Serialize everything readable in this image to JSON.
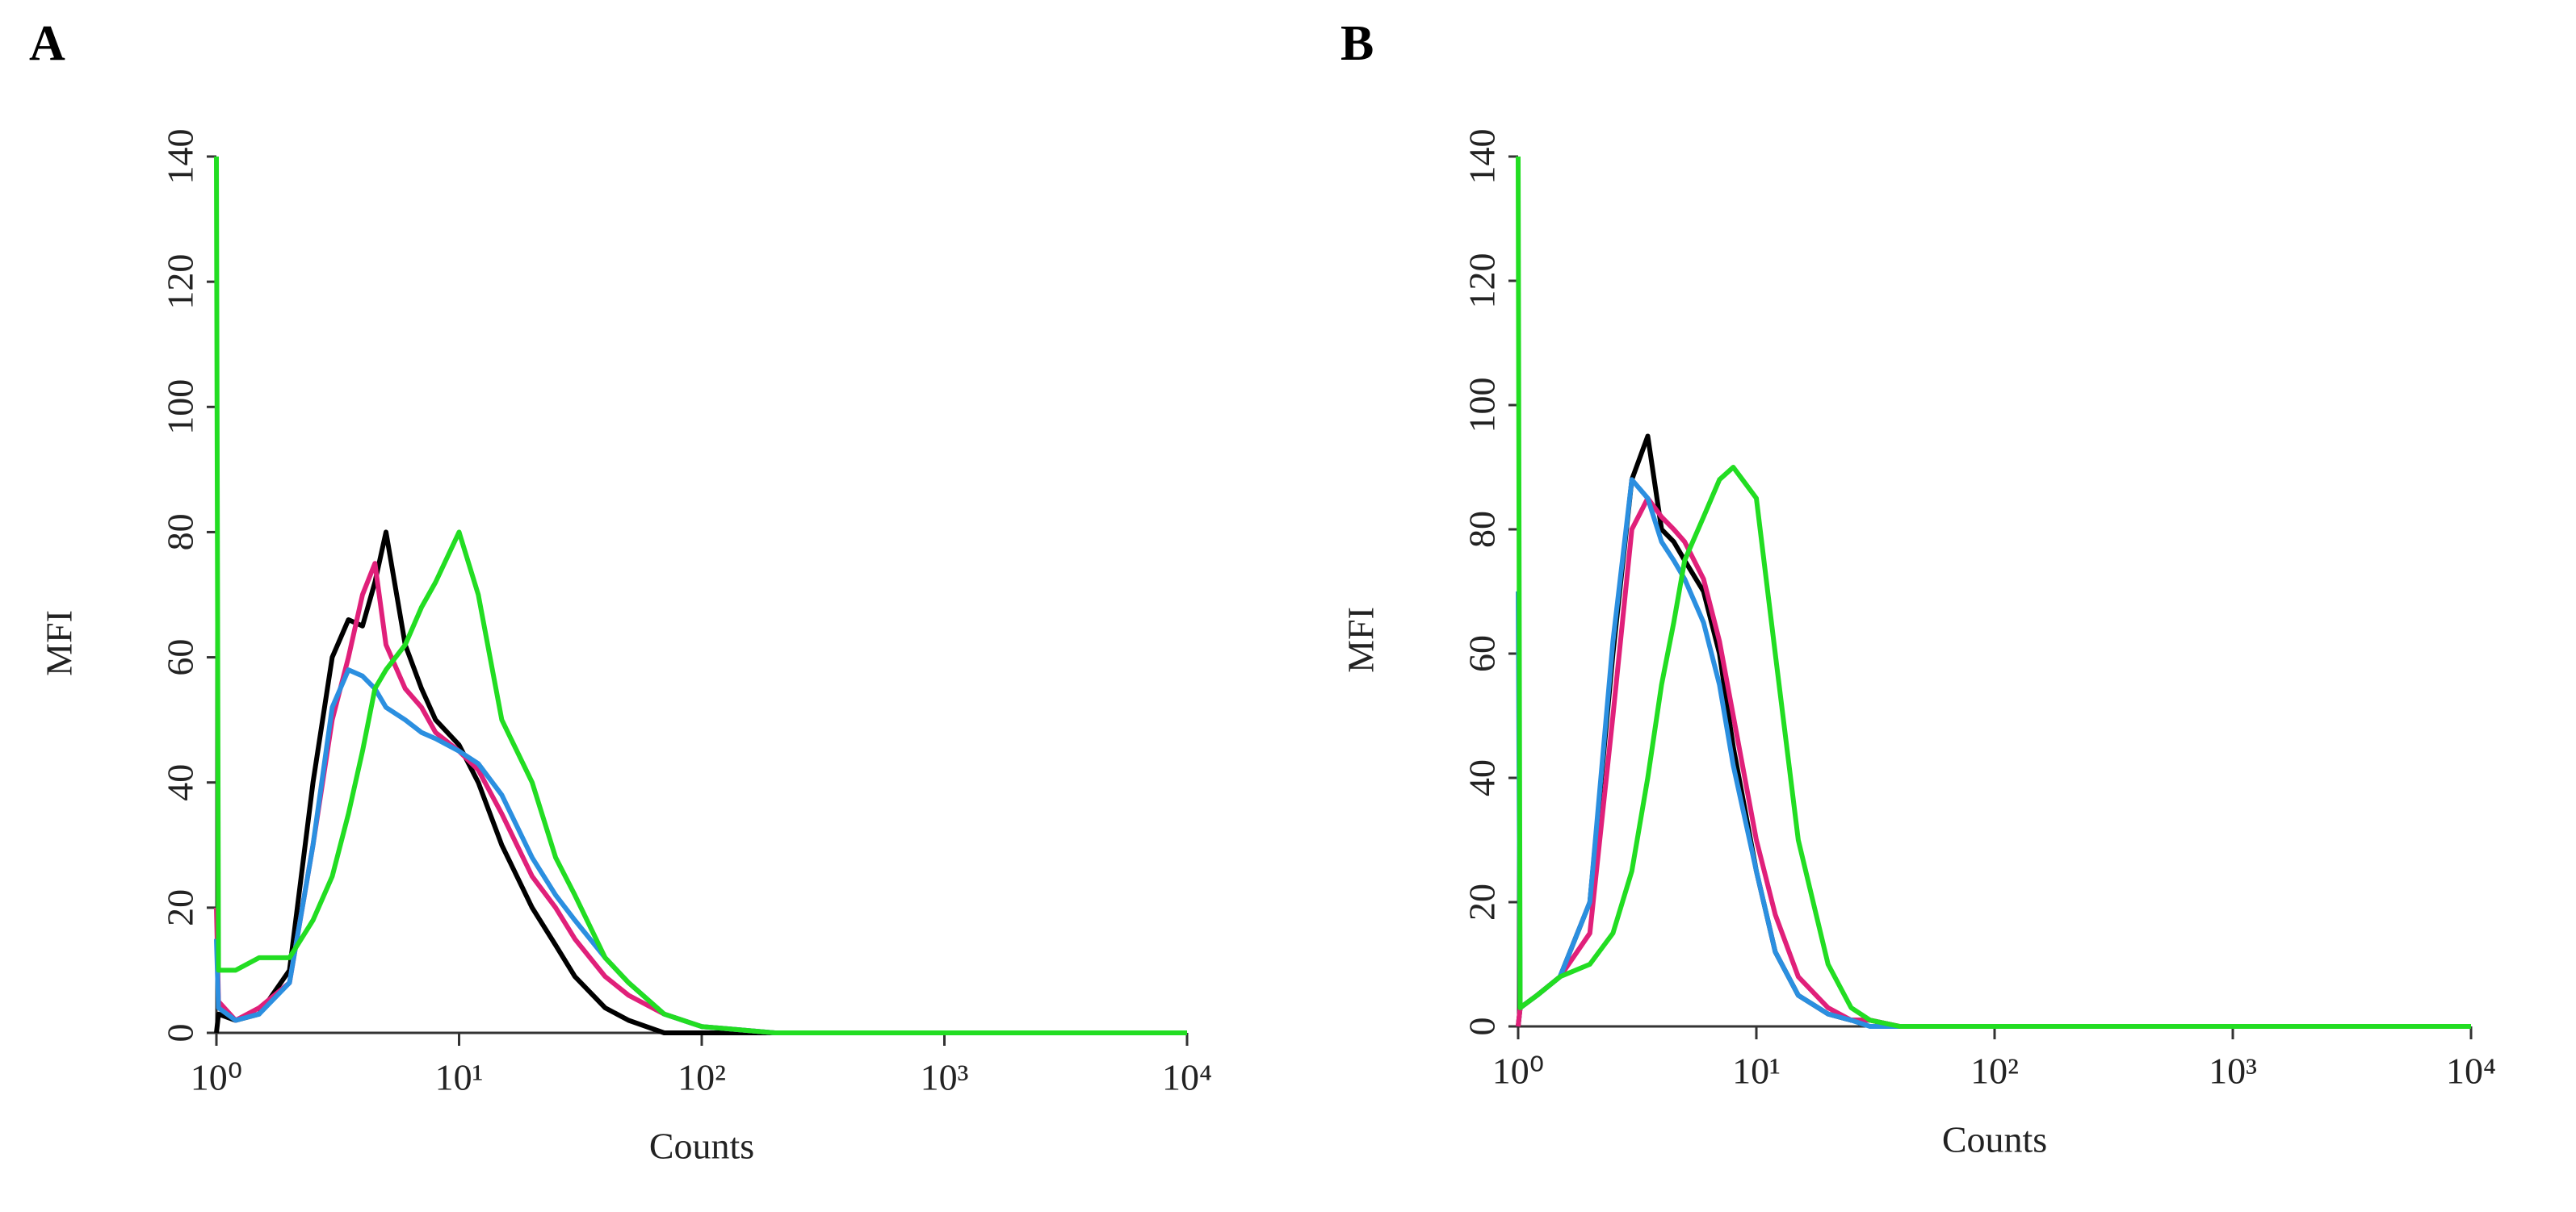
{
  "chart_data": [
    {
      "type": "line",
      "label": "A",
      "xlabel": "Counts",
      "ylabel": "MFI",
      "xscale": "log",
      "xlim": [
        1,
        10000
      ],
      "xticks": [
        {
          "value": 1,
          "label": "10⁰"
        },
        {
          "value": 10,
          "label": "10¹"
        },
        {
          "value": 100,
          "label": "10²"
        },
        {
          "value": 1000,
          "label": "10³"
        },
        {
          "value": 10000,
          "label": "10⁴"
        }
      ],
      "ylim": [
        0,
        140
      ],
      "yticks": [
        0,
        20,
        40,
        60,
        80,
        100,
        120,
        140
      ],
      "x": [
        1,
        1.02,
        1.2,
        1.5,
        2,
        2.5,
        3,
        3.5,
        4,
        4.5,
        5,
        6,
        7,
        8,
        10,
        12,
        15,
        20,
        25,
        30,
        40,
        50,
        70,
        100,
        200,
        1000,
        10000
      ],
      "series": [
        {
          "color": "#000000",
          "values": [
            0,
            3,
            2,
            3,
            10,
            40,
            60,
            66,
            65,
            72,
            80,
            62,
            55,
            50,
            46,
            40,
            30,
            20,
            14,
            9,
            4,
            2,
            0,
            0,
            0,
            0,
            0
          ]
        },
        {
          "color": "#e0207a",
          "values": [
            20,
            5,
            2,
            4,
            8,
            30,
            50,
            60,
            70,
            75,
            62,
            55,
            52,
            48,
            45,
            42,
            35,
            25,
            20,
            15,
            9,
            6,
            3,
            1,
            0,
            0,
            0
          ]
        },
        {
          "color": "#2b8fe0",
          "values": [
            15,
            4,
            2,
            3,
            8,
            30,
            52,
            58,
            57,
            55,
            52,
            50,
            48,
            47,
            45,
            43,
            38,
            28,
            22,
            18,
            12,
            8,
            3,
            1,
            0,
            0,
            0
          ]
        },
        {
          "color": "#22dd22",
          "values": [
            140,
            10,
            10,
            12,
            12,
            18,
            25,
            35,
            45,
            55,
            58,
            62,
            68,
            72,
            80,
            70,
            50,
            40,
            28,
            22,
            12,
            8,
            3,
            1,
            0,
            0,
            0
          ]
        }
      ]
    },
    {
      "type": "line",
      "label": "B",
      "xlabel": "Counts",
      "ylabel": "MFI",
      "xscale": "log",
      "xlim": [
        1,
        10000
      ],
      "xticks": [
        {
          "value": 1,
          "label": "10⁰"
        },
        {
          "value": 10,
          "label": "10¹"
        },
        {
          "value": 100,
          "label": "10²"
        },
        {
          "value": 1000,
          "label": "10³"
        },
        {
          "value": 10000,
          "label": "10⁴"
        }
      ],
      "ylim": [
        0,
        140
      ],
      "yticks": [
        0,
        20,
        40,
        60,
        80,
        100,
        120,
        140
      ],
      "x": [
        1,
        1.02,
        1.2,
        1.5,
        2,
        2.5,
        3,
        3.5,
        4,
        4.5,
        5,
        6,
        7,
        8,
        10,
        12,
        15,
        20,
        25,
        30,
        40,
        50,
        70,
        100,
        200,
        1000,
        10000
      ],
      "series": [
        {
          "color": "#000000",
          "values": [
            0,
            3,
            5,
            8,
            20,
            60,
            88,
            95,
            80,
            78,
            75,
            70,
            60,
            45,
            25,
            12,
            5,
            2,
            1,
            1,
            0,
            0,
            0,
            0,
            0,
            0,
            0
          ]
        },
        {
          "color": "#e0207a",
          "values": [
            0,
            3,
            5,
            8,
            15,
            50,
            80,
            85,
            82,
            80,
            78,
            72,
            62,
            50,
            30,
            18,
            8,
            3,
            1,
            1,
            0,
            0,
            0,
            0,
            0,
            0,
            0
          ]
        },
        {
          "color": "#2b8fe0",
          "values": [
            70,
            3,
            5,
            8,
            20,
            62,
            88,
            85,
            78,
            75,
            72,
            65,
            55,
            42,
            25,
            12,
            5,
            2,
            1,
            0,
            0,
            0,
            0,
            0,
            0,
            0,
            0
          ]
        },
        {
          "color": "#22dd22",
          "values": [
            140,
            3,
            5,
            8,
            10,
            15,
            25,
            40,
            55,
            65,
            75,
            82,
            88,
            90,
            85,
            60,
            30,
            10,
            3,
            1,
            0,
            0,
            0,
            0,
            0,
            0,
            0
          ]
        }
      ]
    }
  ]
}
